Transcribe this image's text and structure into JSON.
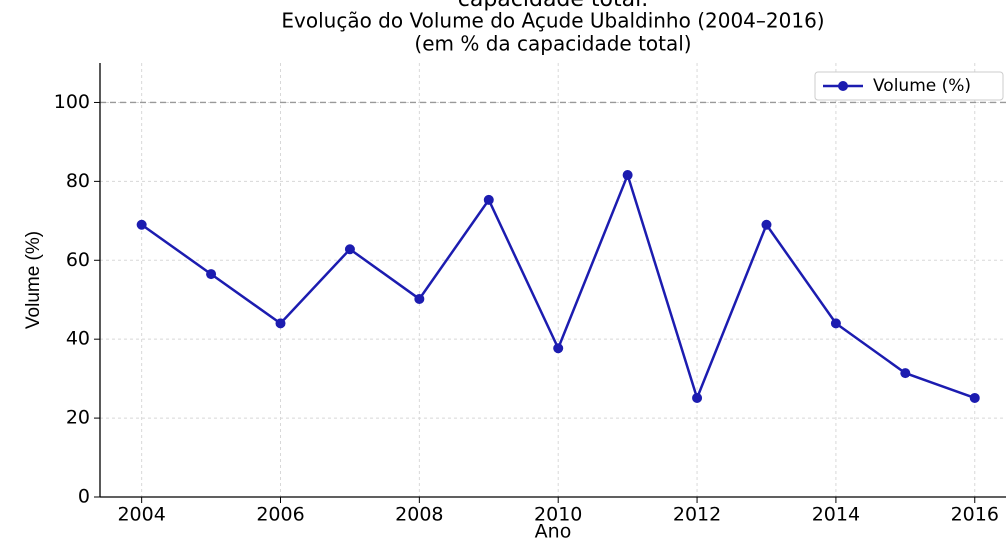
{
  "header_text": "capacidade total.",
  "chart_data": {
    "type": "line",
    "title": "Evolução do Volume do Açude Ubaldinho (2004–2016)",
    "subtitle": "(em % da capacidade total)",
    "x_label": "Ano",
    "y_label": "Volume (%)",
    "x": [
      2004,
      2005,
      2006,
      2007,
      2008,
      2009,
      2010,
      2011,
      2012,
      2013,
      2014,
      2015,
      2016
    ],
    "series": [
      {
        "name": "Volume (%)",
        "color": "#1c1cb0",
        "values": [
          69,
          56.5,
          44,
          62.8,
          50.2,
          75.3,
          37.7,
          81.6,
          25.1,
          69,
          44,
          31.4,
          25.1
        ]
      }
    ],
    "xlim": [
      2003.4,
      2016.45
    ],
    "ylim": [
      0,
      110
    ],
    "xticks": [
      2004,
      2006,
      2008,
      2010,
      2012,
      2014,
      2016
    ],
    "yticks": [
      0,
      20,
      40,
      60,
      80,
      100
    ],
    "reference_line": 100,
    "grid": true,
    "legend": "upper right"
  }
}
